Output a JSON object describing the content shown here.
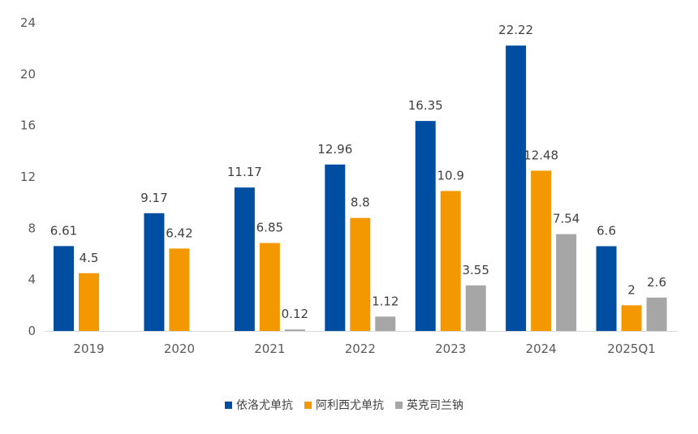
{
  "chart_data": {
    "type": "bar",
    "title": "",
    "xlabel": "",
    "ylabel": "",
    "categories": [
      "2019",
      "2020",
      "2021",
      "2022",
      "2023",
      "2024",
      "2025Q1"
    ],
    "series": [
      {
        "name": "依洛尤单抗",
        "color": "#004EA2",
        "values": [
          6.61,
          9.17,
          11.17,
          12.96,
          16.35,
          22.22,
          6.6
        ],
        "labels": [
          "6.61",
          "9.17",
          "11.17",
          "12.96",
          "16.35",
          "22.22",
          "6.6"
        ]
      },
      {
        "name": "阿利西尤单抗",
        "color": "#F39800",
        "values": [
          4.5,
          6.42,
          6.85,
          8.8,
          10.9,
          12.48,
          2
        ],
        "labels": [
          "4.5",
          "6.42",
          "6.85",
          "8.8",
          "10.9",
          "12.48",
          "2"
        ]
      },
      {
        "name": "英克司兰钠",
        "color": "#A6A6A6",
        "values": [
          null,
          null,
          0.12,
          1.12,
          3.55,
          7.54,
          2.6
        ],
        "labels": [
          null,
          null,
          "0.12",
          "1.12",
          "3.55",
          "7.54",
          "2.6"
        ]
      }
    ],
    "ylim": [
      0,
      24
    ],
    "yticks": [
      "0",
      "4",
      "8",
      "12",
      "16",
      "20",
      "24"
    ],
    "grid": false,
    "legend_position": "bottom"
  }
}
